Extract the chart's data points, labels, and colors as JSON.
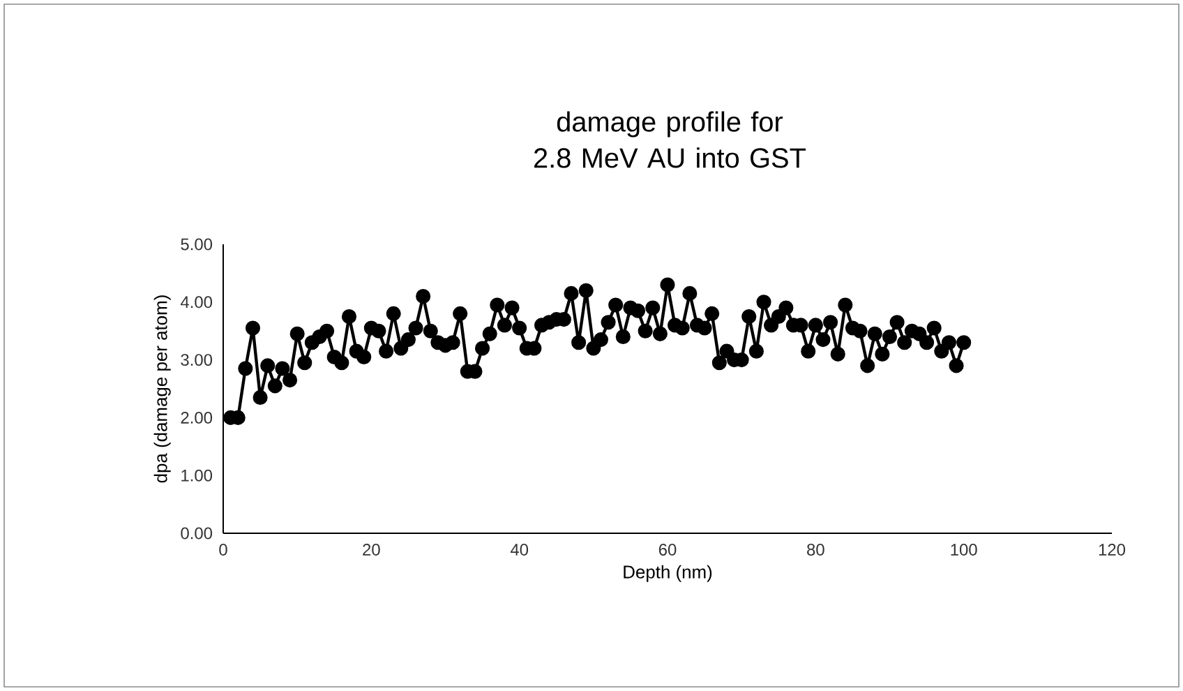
{
  "chart_data": {
    "type": "line",
    "title": "damage profile for 2.8 MeV AU into GST",
    "xlabel": "Depth (nm)",
    "ylabel": "dpa (damage per atom)",
    "xlim": [
      0,
      120
    ],
    "xticks": [
      0,
      20,
      40,
      60,
      80,
      100,
      120
    ],
    "ylim": [
      0,
      5
    ],
    "yticks": [
      {
        "value": 0,
        "label": "0.00"
      },
      {
        "value": 1,
        "label": "1.00"
      },
      {
        "value": 2,
        "label": "2.00"
      },
      {
        "value": 3,
        "label": "3.00"
      },
      {
        "value": 4,
        "label": "4.00"
      },
      {
        "value": 5,
        "label": "5.00"
      }
    ],
    "marker": "circle",
    "line_style": "solid",
    "series": [
      {
        "color": "#000000",
        "x": [
          1,
          2,
          3,
          4,
          5,
          6,
          7,
          8,
          9,
          10,
          11,
          12,
          13,
          14,
          15,
          16,
          17,
          18,
          19,
          20,
          21,
          22,
          23,
          24,
          25,
          26,
          27,
          28,
          29,
          30,
          31,
          32,
          33,
          34,
          35,
          36,
          37,
          38,
          39,
          40,
          41,
          42,
          43,
          44,
          45,
          46,
          47,
          48,
          49,
          50,
          51,
          52,
          53,
          54,
          55,
          56,
          57,
          58,
          59,
          60,
          61,
          62,
          63,
          64,
          65,
          66,
          67,
          68,
          69,
          70,
          71,
          72,
          73,
          74,
          75,
          76,
          77,
          78,
          79,
          80,
          81,
          82,
          83,
          84,
          85,
          86,
          87,
          88,
          89,
          90,
          91,
          92,
          93,
          94,
          95,
          96,
          97,
          98,
          99,
          100
        ],
        "values": [
          2.0,
          2.0,
          2.85,
          3.55,
          2.35,
          2.9,
          2.55,
          2.85,
          2.65,
          3.45,
          2.95,
          3.3,
          3.4,
          3.5,
          3.05,
          2.95,
          3.75,
          3.15,
          3.05,
          3.55,
          3.5,
          3.15,
          3.8,
          3.2,
          3.35,
          3.55,
          4.1,
          3.5,
          3.3,
          3.25,
          3.3,
          3.8,
          2.8,
          2.8,
          3.2,
          3.45,
          3.95,
          3.6,
          3.9,
          3.55,
          3.2,
          3.2,
          3.6,
          3.65,
          3.7,
          3.7,
          4.15,
          3.3,
          4.2,
          3.2,
          3.35,
          3.65,
          3.95,
          3.4,
          3.9,
          3.85,
          3.5,
          3.9,
          3.45,
          4.3,
          3.6,
          3.55,
          4.15,
          3.6,
          3.55,
          3.8,
          2.95,
          3.15,
          3.0,
          3.0,
          3.75,
          3.15,
          4.0,
          3.6,
          3.75,
          3.9,
          3.6,
          3.6,
          3.15,
          3.6,
          3.35,
          3.65,
          3.1,
          3.95,
          3.55,
          3.5,
          2.9,
          3.45,
          3.1,
          3.4,
          3.65,
          3.3,
          3.5,
          3.45,
          3.3,
          3.55,
          3.15,
          3.3,
          2.9,
          3.3
        ]
      }
    ]
  }
}
